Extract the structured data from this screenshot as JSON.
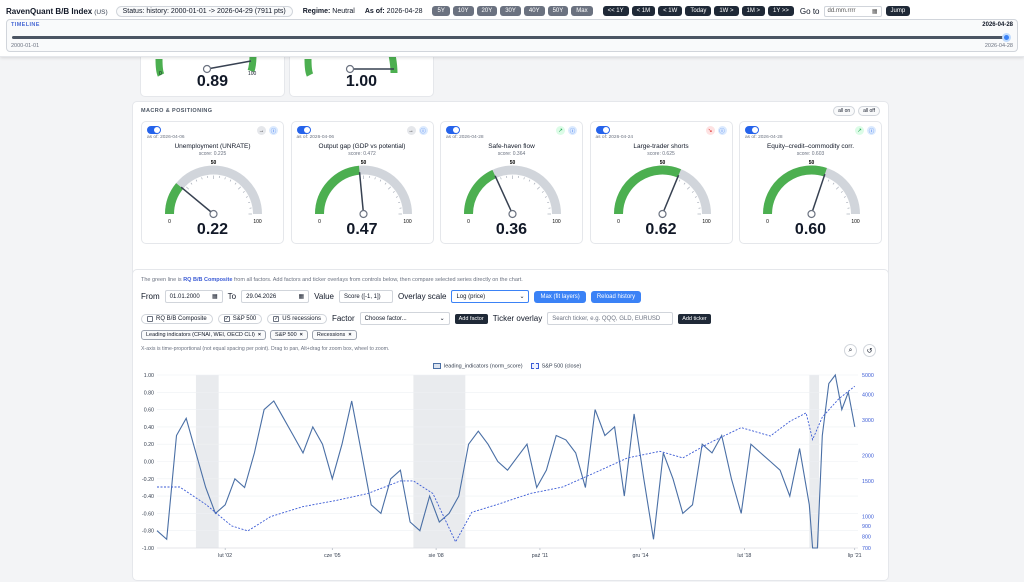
{
  "header": {
    "brand": "RavenQuant B/B Index",
    "brand_suffix": "(US)",
    "status": "Status: history: 2000-01-01 -> 2026-04-29 (7911 pts)",
    "regime_label": "Regime:",
    "regime_value": "Neutral",
    "asof_label": "As of:",
    "asof_value": "2026-04-28",
    "range_buttons": [
      "5Y",
      "10Y",
      "20Y",
      "30Y",
      "40Y",
      "50Y",
      "Max"
    ],
    "nav_buttons": [
      "<< 1Y",
      "< 1M",
      "< 1W",
      "Today",
      "1W >",
      "1M >",
      "1Y >>"
    ],
    "goto_label": "Go to",
    "goto_placeholder": "dd.mm.rrrr",
    "jump_label": "Jump"
  },
  "timeline": {
    "label": "TIMELINE",
    "current": "2026-04-28",
    "start": "2000-01-01",
    "end": "2026-04-28",
    "position": 1.0
  },
  "top_partial": [
    {
      "value": "0.89",
      "min": "0",
      "max": "100"
    },
    {
      "value": "1.00",
      "min": "0",
      "max": "100"
    }
  ],
  "macro": {
    "title": "MACRO & POSITIONING",
    "all_on": "all on",
    "all_off": "all off",
    "cards": [
      {
        "asof": "as of: 2026-04-06",
        "name": "Unemployment (UNRATE)",
        "score": "score: 0.225",
        "value": "0.22",
        "level": 0.22,
        "trend": "trend",
        "mid": "50",
        "min": "0",
        "max": "100"
      },
      {
        "asof": "as of: 2026-04-06",
        "name": "Output gap (GDP vs potential)",
        "score": "score: 0.472",
        "value": "0.47",
        "level": 0.47,
        "trend": "trend",
        "mid": "50",
        "min": "0",
        "max": "100"
      },
      {
        "asof": "as of: 2026-04-28",
        "name": "Safe-haven flow",
        "score": "score: 0.364",
        "value": "0.36",
        "level": 0.364,
        "trend": "up",
        "mid": "50",
        "min": "0",
        "max": "100"
      },
      {
        "asof": "as of: 2026-04-24",
        "name": "Large-trader shorts",
        "score": "score: 0.625",
        "value": "0.62",
        "level": 0.625,
        "trend": "down",
        "mid": "50",
        "min": "0",
        "max": "100"
      },
      {
        "asof": "as of: 2026-04-28",
        "name": "Equity–credit–commodity corr.",
        "score": "score: 0.603",
        "value": "0.60",
        "level": 0.603,
        "trend": "up",
        "mid": "50",
        "min": "0",
        "max": "100"
      }
    ]
  },
  "chart_panel": {
    "note_pre": "The green line is",
    "note_bold": "RQ B/B Composite",
    "note_post": "from all factors. Add factors and ticker overlays from controls below, then compare selected series directly on the chart.",
    "from_label": "From",
    "from_value": "01.01.2000",
    "to_label": "To",
    "to_value": "29.04.2026",
    "value_label": "Value",
    "value_select": "Score ([-1, 1])",
    "overlay_label": "Overlay scale",
    "overlay_select": "Log (price)",
    "max_btn": "Max (fit layers)",
    "reload_btn": "Reload history",
    "chk_composite": "RQ B/B Composite",
    "chk_sp500": "S&P 500",
    "chk_recessions": "US recessions",
    "factor_label": "Factor",
    "factor_placeholder": "Choose factor...",
    "add_factor": "Add factor",
    "ticker_label": "Ticker overlay",
    "ticker_placeholder": "Search ticker, e.g. QQQ, GLD, EURUSD",
    "add_ticker": "Add ticker",
    "tags": [
      "Leading indicators (CFNAI, WEI, OECD CLI)",
      "S&P 500",
      "Recessions"
    ],
    "tag_close": "×",
    "hint": "X-axis is time-proportional (not equal spacing per point). Drag to pan, Alt+drag for zoom box, wheel to zoom.",
    "zoom_icon": "magnifier-icon",
    "reset_icon": "reset-icon"
  },
  "chart_data": {
    "type": "line",
    "x_ticks": [
      "lut '02",
      "cze '05",
      "sie '08",
      "paź '11",
      "gru '14",
      "lut '18",
      "lip '21"
    ],
    "y_left_ticks": [
      "1.00",
      "0.80",
      "0.60",
      "0.40",
      "0.20",
      "0.00",
      "-0.20",
      "-0.40",
      "-0.60",
      "-0.80",
      "-1.00"
    ],
    "y_right_ticks": [
      "5000",
      "4000",
      "3000",
      "2000",
      "1500",
      "1000",
      "900",
      "800",
      "700"
    ],
    "ylim_left": [
      -1,
      1
    ],
    "ylim_right": [
      700,
      5000
    ],
    "legend": [
      "leading_indicators (norm_score)",
      "S&P 500 (close)"
    ],
    "legend_placement": "top-center",
    "recessions": [
      {
        "start": 2001.2,
        "end": 2001.9
      },
      {
        "start": 2007.9,
        "end": 2009.5
      },
      {
        "start": 2020.1,
        "end": 2020.4
      }
    ],
    "series": [
      {
        "name": "leading_indicators (norm_score)",
        "style": "solid",
        "color": "#4a6fa5",
        "x": [
          2000.0,
          2000.3,
          2000.6,
          2000.9,
          2001.2,
          2001.5,
          2001.8,
          2002.1,
          2002.4,
          2002.7,
          2003.0,
          2003.3,
          2003.6,
          2003.9,
          2004.2,
          2004.5,
          2004.8,
          2005.1,
          2005.4,
          2005.7,
          2006.0,
          2006.3,
          2006.6,
          2006.9,
          2007.2,
          2007.5,
          2007.8,
          2008.1,
          2008.4,
          2008.7,
          2009.0,
          2009.3,
          2009.6,
          2009.9,
          2010.2,
          2010.5,
          2010.8,
          2011.1,
          2011.4,
          2011.7,
          2012.0,
          2012.3,
          2012.6,
          2012.9,
          2013.2,
          2013.5,
          2013.8,
          2014.1,
          2014.4,
          2014.7,
          2015.0,
          2015.3,
          2015.6,
          2015.9,
          2016.2,
          2016.5,
          2016.8,
          2017.1,
          2017.4,
          2017.7,
          2018.0,
          2018.3,
          2018.6,
          2018.9,
          2019.2,
          2019.5,
          2019.8,
          2020.1,
          2020.2,
          2020.35,
          2020.5,
          2020.7,
          2020.9,
          2021.1,
          2021.3,
          2021.5
        ],
        "y": [
          -0.8,
          -0.9,
          0.3,
          0.5,
          0.1,
          -0.3,
          -0.6,
          -0.5,
          -0.2,
          -0.3,
          0.1,
          0.6,
          0.7,
          0.5,
          0.3,
          0.1,
          0.4,
          0.2,
          -0.2,
          0.2,
          0.7,
          0.1,
          -0.5,
          -0.6,
          -0.2,
          -0.1,
          -0.7,
          -0.8,
          -0.4,
          -0.7,
          -0.6,
          -0.4,
          0.2,
          0.35,
          0.2,
          0.0,
          -0.1,
          0.05,
          0.2,
          -0.3,
          -0.1,
          0.3,
          0.25,
          0.1,
          -0.3,
          0.6,
          0.3,
          0.4,
          -0.4,
          0.55,
          -0.2,
          -0.9,
          0.1,
          -0.2,
          -0.6,
          -0.5,
          0.2,
          0.1,
          0.3,
          -0.2,
          -0.6,
          0.2,
          0.1,
          0.0,
          -0.1,
          -0.4,
          0.15,
          -0.5,
          -1.0,
          -1.0,
          0.3,
          0.9,
          1.0,
          0.6,
          0.8,
          0.4
        ]
      },
      {
        "name": "S&P 500 (close)",
        "style": "dashed",
        "color": "#3b5bd5",
        "x": [
          2000.0,
          2000.7,
          2001.5,
          2002.3,
          2002.8,
          2003.5,
          2004.5,
          2005.5,
          2006.5,
          2007.5,
          2007.9,
          2008.5,
          2009.2,
          2009.7,
          2010.5,
          2011.5,
          2012.5,
          2013.5,
          2014.5,
          2015.5,
          2016.2,
          2017.0,
          2018.0,
          2018.9,
          2019.5,
          2020.0,
          2020.2,
          2020.5,
          2021.0,
          2021.5
        ],
        "y": [
          1400,
          1400,
          1150,
          900,
          850,
          1000,
          1120,
          1200,
          1300,
          1500,
          1500,
          1300,
          750,
          1050,
          1150,
          1300,
          1400,
          1650,
          1950,
          2100,
          1950,
          2300,
          2750,
          2500,
          2950,
          3250,
          2400,
          3100,
          3800,
          4400
        ]
      }
    ]
  }
}
